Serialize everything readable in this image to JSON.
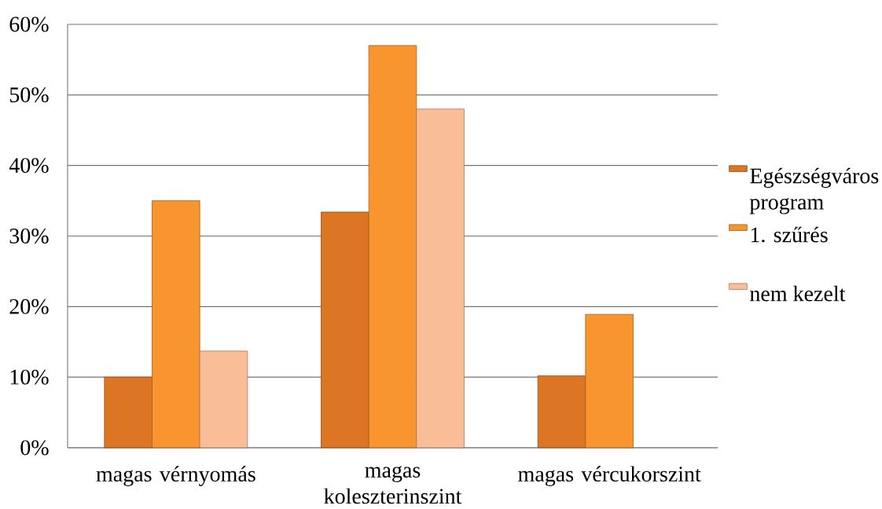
{
  "chart_data": {
    "type": "bar",
    "categories": [
      "magas vérnyomás",
      "magas koleszterinszint",
      "magas vércukorszint"
    ],
    "series": [
      {
        "name": "Egészségváros program",
        "color": "#dc7624",
        "values": [
          10,
          33.4,
          10.2
        ]
      },
      {
        "name": "1. szűrés",
        "color": "#f8952e",
        "values": [
          35,
          57,
          18.9
        ]
      },
      {
        "name": "nem kezelt",
        "color": "#f9bd98",
        "values": [
          13.7,
          48,
          null
        ]
      }
    ],
    "ylim": [
      0,
      60
    ],
    "yticks": [
      {
        "value": 0,
        "label": "0%"
      },
      {
        "value": 10,
        "label": "10%"
      },
      {
        "value": 20,
        "label": "20%"
      },
      {
        "value": 30,
        "label": "30%"
      },
      {
        "value": 40,
        "label": "40%"
      },
      {
        "value": 50,
        "label": "50%"
      },
      {
        "value": 60,
        "label": "60%"
      }
    ],
    "grid": "y",
    "legend": "right"
  }
}
